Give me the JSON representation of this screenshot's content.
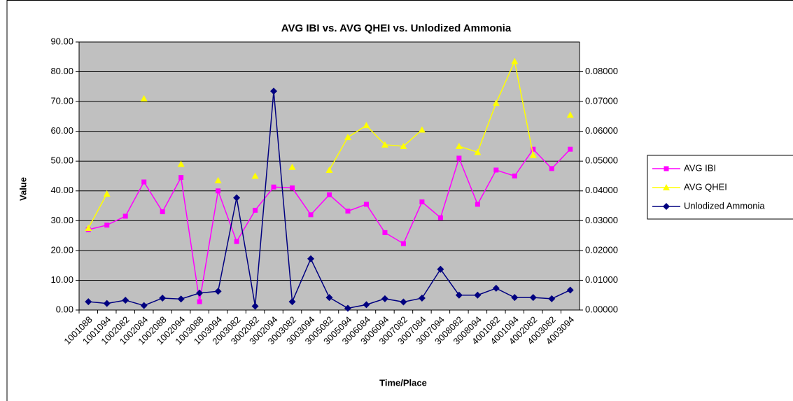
{
  "chart_data": {
    "type": "line",
    "title": "AVG IBI vs. AVG QHEI vs. Unlodized Ammonia",
    "x_label": "Time/Place",
    "y_label": "Value",
    "categories": [
      "1001088",
      "1001094",
      "1002082",
      "1002084",
      "1002088",
      "1002094",
      "1003088",
      "1003094",
      "2003082",
      "3002082",
      "3002094",
      "3003082",
      "3003094",
      "3005082",
      "3005094",
      "3006084",
      "3006094",
      "3007082",
      "3007084",
      "3007094",
      "3008082",
      "3008094",
      "4001082",
      "4001094",
      "4002082",
      "4003082",
      "4003094"
    ],
    "series": [
      {
        "name": "AVG IBI",
        "color": "#ff00ff",
        "marker": "square",
        "values": [
          27,
          28.5,
          31.5,
          43,
          33,
          44.5,
          2.8,
          40,
          23,
          33.5,
          41.3,
          41,
          32,
          38.7,
          33.2,
          35.5,
          26,
          22.3,
          36.3,
          31,
          51,
          35.5,
          47,
          45,
          54,
          47.5,
          54
        ]
      },
      {
        "name": "AVG QHEI",
        "color": "#ffff00",
        "marker": "triangle",
        "values": [
          27.5,
          39,
          null,
          71,
          null,
          49,
          null,
          43.5,
          null,
          45,
          null,
          48,
          null,
          47,
          58,
          62,
          55.5,
          55,
          60.5,
          null,
          55,
          53,
          69.5,
          83.5,
          52,
          null,
          65.5
        ]
      },
      {
        "name": "Unlodized Ammonia",
        "color": "#000080",
        "marker": "diamond",
        "axis": "y2",
        "values": [
          0.0028,
          0.0022,
          0.0033,
          0.0015,
          0.004,
          0.0037,
          0.0057,
          0.0063,
          0.0377,
          0.0013,
          0.0735,
          0.0028,
          0.0172,
          0.0042,
          0.0006,
          0.0018,
          0.0038,
          0.0027,
          0.004,
          0.0137,
          0.005,
          0.005,
          0.0073,
          0.0042,
          0.0042,
          0.0038,
          0.0067
        ]
      }
    ],
    "ylim": [
      0,
      90
    ],
    "yticks": [
      {
        "value": 0,
        "label": "0.00"
      },
      {
        "value": 10,
        "label": "10.00"
      },
      {
        "value": 20,
        "label": "20.00"
      },
      {
        "value": 30,
        "label": "30.00"
      },
      {
        "value": 40,
        "label": "40.00"
      },
      {
        "value": 50,
        "label": "50.00"
      },
      {
        "value": 60,
        "label": "60.00"
      },
      {
        "value": 70,
        "label": "70.00"
      },
      {
        "value": 80,
        "label": "80.00"
      },
      {
        "value": 90,
        "label": "90.00"
      }
    ],
    "y2lim": [
      0,
      0.09
    ],
    "y2ticks": [
      {
        "value": 0,
        "label": "0.00000"
      },
      {
        "value": 0.01,
        "label": "0.01000"
      },
      {
        "value": 0.02,
        "label": "0.02000"
      },
      {
        "value": 0.03,
        "label": "0.03000"
      },
      {
        "value": 0.04,
        "label": "0.04000"
      },
      {
        "value": 0.05,
        "label": "0.05000"
      },
      {
        "value": 0.06,
        "label": "0.06000"
      },
      {
        "value": 0.07,
        "label": "0.07000"
      },
      {
        "value": 0.08,
        "label": "0.08000"
      }
    ],
    "grid": true,
    "legend": "right",
    "plot_background": "#c0c0c0"
  }
}
